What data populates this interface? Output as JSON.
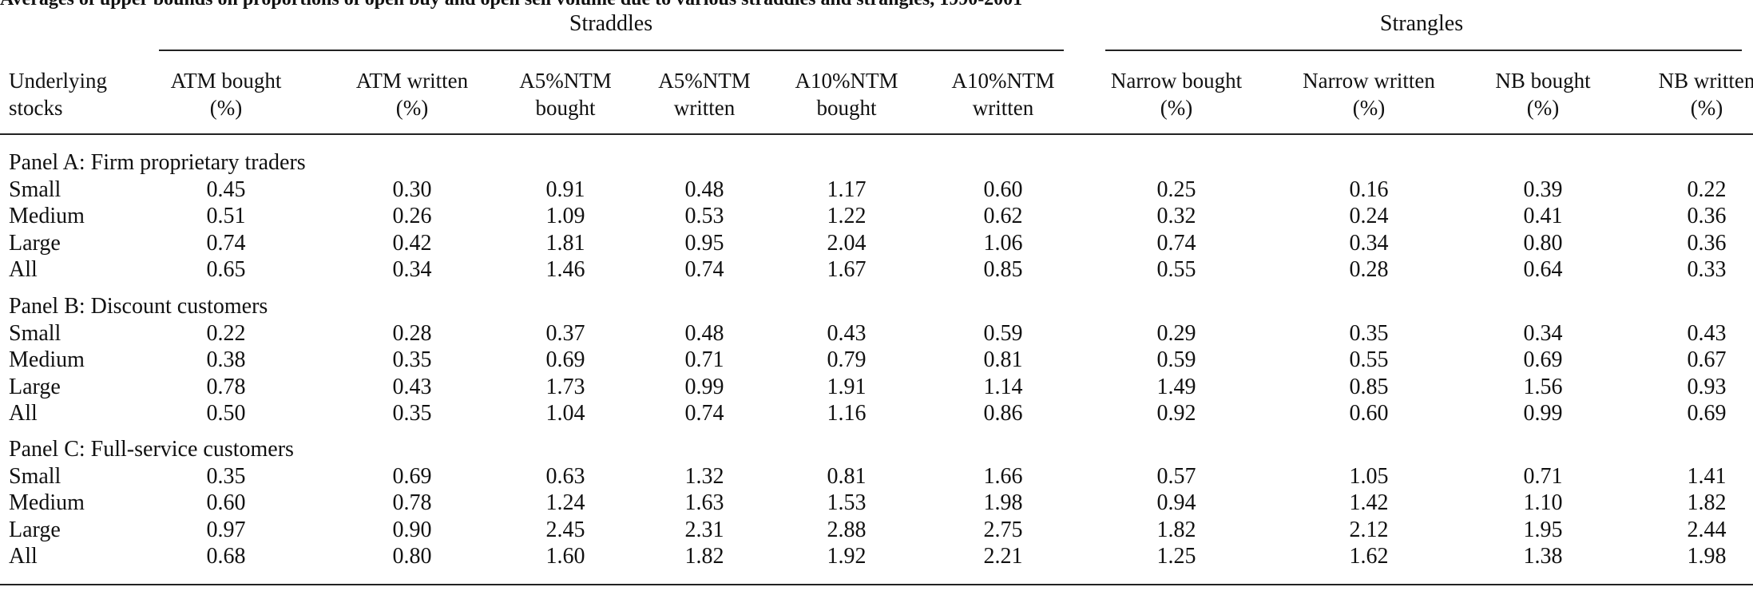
{
  "caption": "Averages of upper bounds on proportions of open buy and open sell volume due to various straddles and strangles, 1990-2001",
  "groups": {
    "straddles": "Straddles",
    "strangles": "Strangles"
  },
  "row_header": [
    "Underlying",
    "stocks"
  ],
  "columns": [
    [
      "ATM bought",
      "(%)"
    ],
    [
      "ATM written",
      "(%)"
    ],
    [
      "A5%NTM",
      "bought"
    ],
    [
      "A5%NTM",
      "written"
    ],
    [
      "A10%NTM",
      "bought"
    ],
    [
      "A10%NTM",
      "written"
    ],
    [
      "Narrow bought",
      "(%)"
    ],
    [
      "Narrow written",
      "(%)"
    ],
    [
      "NB bought",
      "(%)"
    ],
    [
      "NB written",
      "(%)"
    ]
  ],
  "panels": [
    {
      "title": "Panel A: Firm proprietary traders",
      "rows": [
        {
          "label": "Small",
          "values": [
            "0.45",
            "0.30",
            "0.91",
            "0.48",
            "1.17",
            "0.60",
            "0.25",
            "0.16",
            "0.39",
            "0.22"
          ]
        },
        {
          "label": "Medium",
          "values": [
            "0.51",
            "0.26",
            "1.09",
            "0.53",
            "1.22",
            "0.62",
            "0.32",
            "0.24",
            "0.41",
            "0.36"
          ]
        },
        {
          "label": "Large",
          "values": [
            "0.74",
            "0.42",
            "1.81",
            "0.95",
            "2.04",
            "1.06",
            "0.74",
            "0.34",
            "0.80",
            "0.36"
          ]
        },
        {
          "label": "All",
          "values": [
            "0.65",
            "0.34",
            "1.46",
            "0.74",
            "1.67",
            "0.85",
            "0.55",
            "0.28",
            "0.64",
            "0.33"
          ]
        }
      ]
    },
    {
      "title": "Panel B: Discount customers",
      "rows": [
        {
          "label": "Small",
          "values": [
            "0.22",
            "0.28",
            "0.37",
            "0.48",
            "0.43",
            "0.59",
            "0.29",
            "0.35",
            "0.34",
            "0.43"
          ]
        },
        {
          "label": "Medium",
          "values": [
            "0.38",
            "0.35",
            "0.69",
            "0.71",
            "0.79",
            "0.81",
            "0.59",
            "0.55",
            "0.69",
            "0.67"
          ]
        },
        {
          "label": "Large",
          "values": [
            "0.78",
            "0.43",
            "1.73",
            "0.99",
            "1.91",
            "1.14",
            "1.49",
            "0.85",
            "1.56",
            "0.93"
          ]
        },
        {
          "label": "All",
          "values": [
            "0.50",
            "0.35",
            "1.04",
            "0.74",
            "1.16",
            "0.86",
            "0.92",
            "0.60",
            "0.99",
            "0.69"
          ]
        }
      ]
    },
    {
      "title": "Panel C: Full-service customers",
      "rows": [
        {
          "label": "Small",
          "values": [
            "0.35",
            "0.69",
            "0.63",
            "1.32",
            "0.81",
            "1.66",
            "0.57",
            "1.05",
            "0.71",
            "1.41"
          ]
        },
        {
          "label": "Medium",
          "values": [
            "0.60",
            "0.78",
            "1.24",
            "1.63",
            "1.53",
            "1.98",
            "0.94",
            "1.42",
            "1.10",
            "1.82"
          ]
        },
        {
          "label": "Large",
          "values": [
            "0.97",
            "0.90",
            "2.45",
            "2.31",
            "2.88",
            "2.75",
            "1.82",
            "2.12",
            "1.95",
            "2.44"
          ]
        },
        {
          "label": "All",
          "values": [
            "0.68",
            "0.80",
            "1.60",
            "1.82",
            "1.92",
            "2.21",
            "1.25",
            "1.62",
            "1.38",
            "1.98"
          ]
        }
      ]
    }
  ]
}
